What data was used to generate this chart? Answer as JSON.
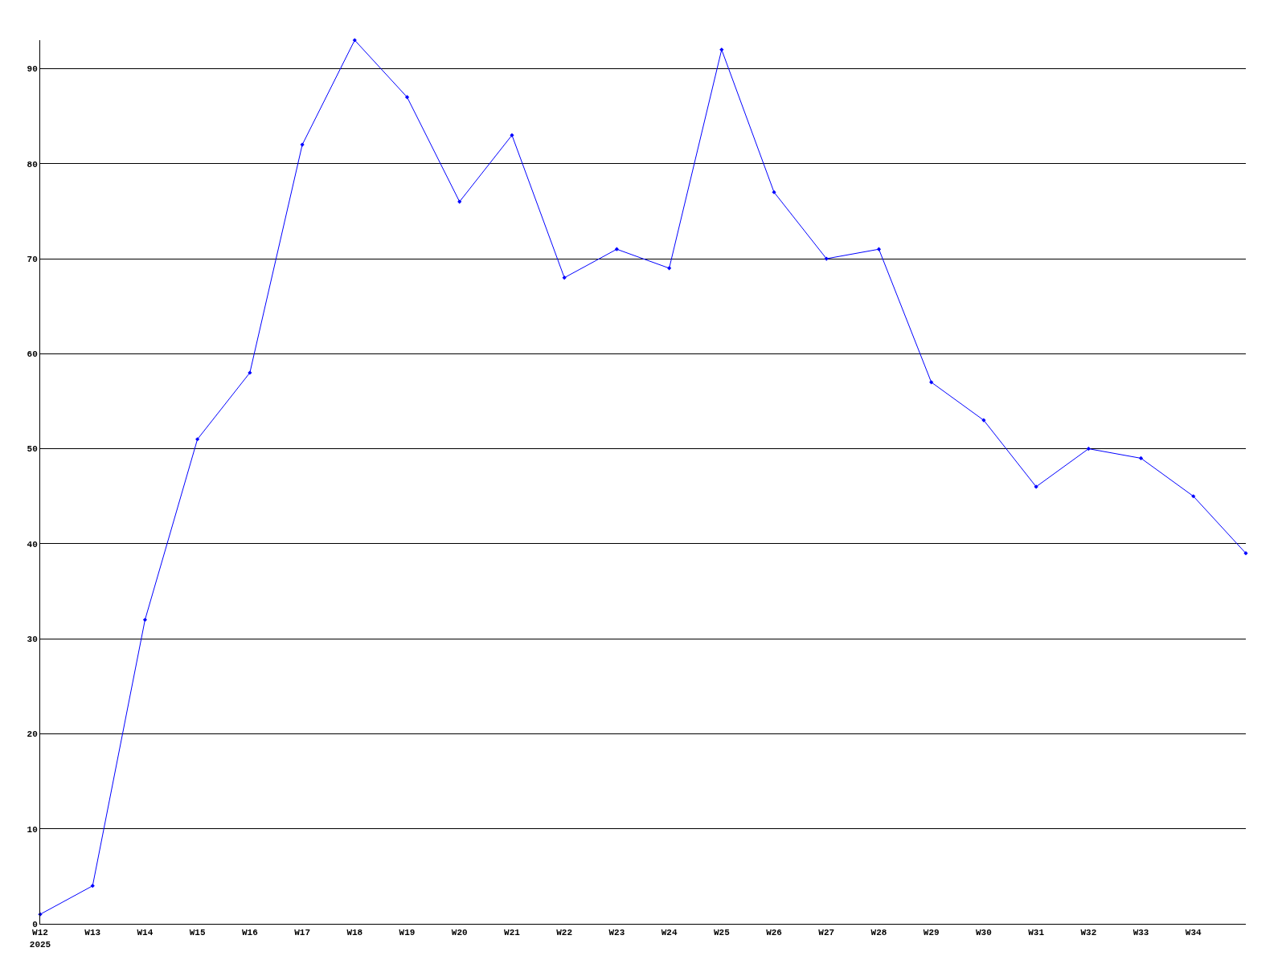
{
  "chart_data": {
    "type": "line",
    "categories": [
      "W12\n2025",
      "W13",
      "W14",
      "W15",
      "W16",
      "W17",
      "W18",
      "W19",
      "W20",
      "W21",
      "W22",
      "W23",
      "W24",
      "W25",
      "W26",
      "W27",
      "W28",
      "W29",
      "W30",
      "W31",
      "W32",
      "W33",
      "W34",
      null
    ],
    "series": [
      {
        "color": "#0000ff",
        "values": [
          1,
          4,
          32,
          51,
          58,
          82,
          93,
          87,
          76,
          83,
          68,
          71,
          69,
          92,
          77,
          70,
          71,
          57,
          53,
          46,
          50,
          49,
          45,
          39
        ]
      }
    ],
    "ylim": [
      0,
      93
    ],
    "yticks": [
      0,
      10,
      20,
      30,
      40,
      50,
      60,
      70,
      80,
      90
    ],
    "grid": "y",
    "marker": "diamond",
    "line_style": "solid"
  }
}
